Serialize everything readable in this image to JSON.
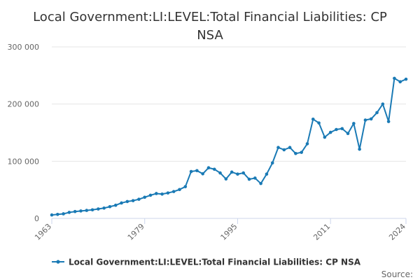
{
  "chart_data": {
    "type": "line",
    "title_lines": [
      "Local Government:LI:LEVEL:Total Financial Liabilities: CP",
      "NSA"
    ],
    "xlabel": "",
    "ylabel": "",
    "x_ticks": [
      "1963",
      "1979",
      "1995",
      "2011",
      "2024"
    ],
    "y_ticks": [
      "0",
      "100 000",
      "200 000",
      "300 000"
    ],
    "y_tick_values": [
      0,
      100000,
      200000,
      300000
    ],
    "xlim": [
      1963,
      2024
    ],
    "ylim": [
      0,
      300000
    ],
    "grid": true,
    "legend_position": "bottom-center",
    "series": [
      {
        "name": "Local Government:LI:LEVEL:Total Financial Liabilities: CP NSA",
        "color": "#1a7ab5",
        "x": [
          1963,
          1964,
          1965,
          1966,
          1967,
          1968,
          1969,
          1970,
          1971,
          1972,
          1973,
          1974,
          1975,
          1976,
          1977,
          1978,
          1979,
          1980,
          1981,
          1982,
          1983,
          1984,
          1985,
          1986,
          1987,
          1988,
          1989,
          1990,
          1991,
          1992,
          1993,
          1994,
          1995,
          1996,
          1997,
          1998,
          1999,
          2000,
          2001,
          2002,
          2003,
          2004,
          2005,
          2006,
          2007,
          2008,
          2009,
          2010,
          2011,
          2012,
          2013,
          2014,
          2015,
          2016,
          2017,
          2018,
          2019,
          2020,
          2021,
          2022,
          2023,
          2024
        ],
        "values": [
          6000,
          7000,
          8000,
          10500,
          12000,
          13000,
          14000,
          15000,
          16500,
          18000,
          20500,
          23000,
          27000,
          29500,
          31000,
          33500,
          37000,
          40500,
          43500,
          42500,
          44500,
          47000,
          50500,
          55500,
          82000,
          83500,
          78000,
          88500,
          86000,
          79500,
          69000,
          81000,
          77500,
          79500,
          68500,
          70500,
          61000,
          77500,
          97000,
          124000,
          120000,
          124000,
          113500,
          115500,
          130500,
          173500,
          167000,
          142000,
          150500,
          155500,
          157000,
          148500,
          166000,
          121000,
          172000,
          174000,
          185000,
          200000,
          169500,
          245000,
          239000,
          243500
        ]
      }
    ]
  },
  "source_label": "Source:"
}
